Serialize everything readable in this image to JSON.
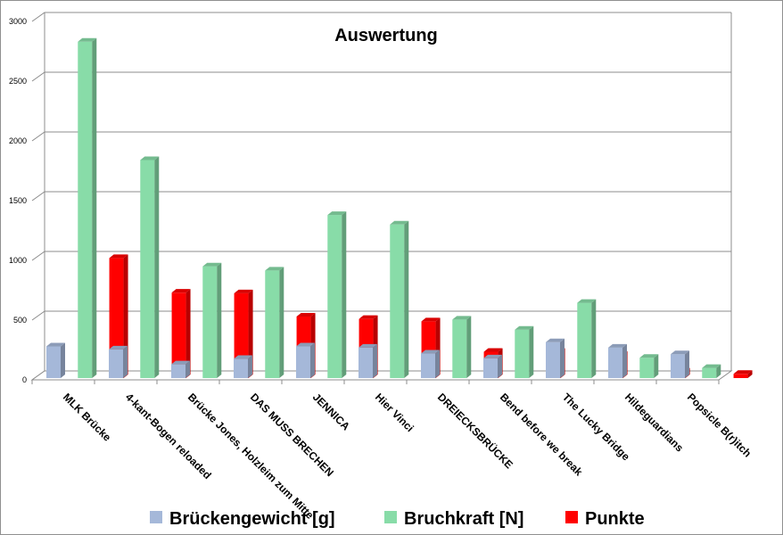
{
  "chart_data": {
    "type": "bar",
    "title": "Auswertung",
    "categories": [
      "MLK Brücke",
      "4-kant-Bogen reloaded",
      "Brücke Jones, Holzleim zum Mitte",
      "DAS MUSS BRECHEN",
      "JENNICA",
      "Hier Vinci",
      "DREIECKSBRÜCKE",
      "Bend before we break",
      "The Lucky Bridge",
      "Hildeguardians",
      "Popsicle B(r)itch"
    ],
    "series": [
      {
        "name": "Brückengewicht [g]",
        "color": "#a5b8d9",
        "values": [
          280,
          255,
          130,
          175,
          280,
          270,
          220,
          180,
          315,
          270,
          215
        ]
      },
      {
        "name": "Bruchkraft [N]",
        "color": "#88dca8",
        "values": [
          2830,
          1840,
          950,
          915,
          1380,
          1300,
          505,
          420,
          645,
          185,
          100
        ]
      },
      {
        "name": "Punkte",
        "color": "#ff0000",
        "values": [
          1020,
          730,
          725,
          530,
          510,
          490,
          235,
          235,
          210,
          70,
          50
        ]
      }
    ],
    "yticks": [
      "0",
      "500",
      "1000",
      "1500",
      "2000",
      "2500",
      "3000"
    ],
    "ylim": [
      0,
      3000
    ],
    "grid": true,
    "legend_position": "bottom"
  }
}
